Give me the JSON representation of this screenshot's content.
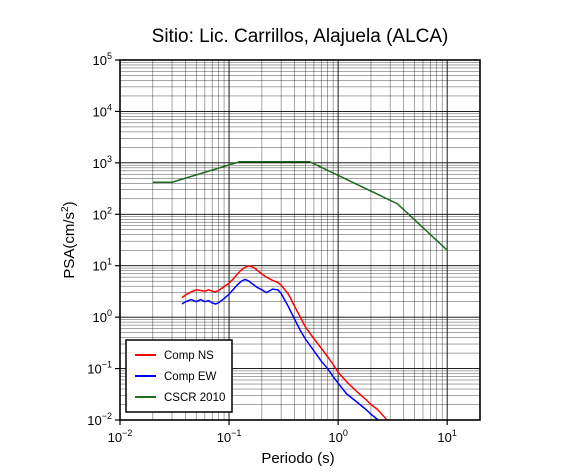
{
  "chart_data": {
    "type": "line",
    "title": "Sitio: Lic. Carrillos, Alajuela (ALCA)",
    "xlabel": "Periodo (s)",
    "ylabel_prefix": "PSA(cm/s",
    "ylabel_exp": "2",
    "ylabel_suffix": ")",
    "x_scale": "log",
    "y_scale": "log",
    "xlim": [
      0.01,
      20
    ],
    "ylim": [
      0.01,
      100000
    ],
    "grid": true,
    "legend_position": "bottom-left",
    "x_ticks": [
      {
        "value": 0.01,
        "base": "10",
        "exp": "−2"
      },
      {
        "value": 0.1,
        "base": "10",
        "exp": "−1"
      },
      {
        "value": 1,
        "base": "10",
        "exp": "0"
      },
      {
        "value": 10,
        "base": "10",
        "exp": "1"
      }
    ],
    "y_ticks": [
      {
        "value": 0.01,
        "base": "10",
        "exp": "−2"
      },
      {
        "value": 0.1,
        "base": "10",
        "exp": "−1"
      },
      {
        "value": 1,
        "base": "10",
        "exp": "0"
      },
      {
        "value": 10,
        "base": "10",
        "exp": "1"
      },
      {
        "value": 100,
        "base": "10",
        "exp": "2"
      },
      {
        "value": 1000,
        "base": "10",
        "exp": "3"
      },
      {
        "value": 10000,
        "base": "10",
        "exp": "4"
      },
      {
        "value": 100000,
        "base": "10",
        "exp": "5"
      }
    ],
    "series": [
      {
        "name": "Comp NS",
        "color": "#ff0000",
        "x": [
          0.037,
          0.04,
          0.045,
          0.05,
          0.055,
          0.06,
          0.065,
          0.07,
          0.075,
          0.08,
          0.09,
          0.1,
          0.11,
          0.12,
          0.13,
          0.14,
          0.15,
          0.16,
          0.17,
          0.18,
          0.2,
          0.22,
          0.25,
          0.28,
          0.3,
          0.35,
          0.4,
          0.45,
          0.5,
          0.6,
          0.7,
          0.8,
          0.9,
          1.0,
          1.2,
          1.5,
          1.8,
          2.0,
          2.3,
          2.6,
          3.0
        ],
        "y": [
          2.4,
          2.7,
          3.1,
          3.4,
          3.3,
          3.2,
          3.4,
          3.2,
          3.1,
          3.3,
          3.9,
          4.6,
          5.6,
          7.0,
          8.3,
          9.3,
          9.9,
          9.7,
          9.1,
          8.3,
          6.9,
          6.0,
          5.2,
          4.7,
          4.2,
          2.8,
          1.6,
          1.0,
          0.65,
          0.38,
          0.25,
          0.17,
          0.12,
          0.085,
          0.055,
          0.035,
          0.025,
          0.02,
          0.016,
          0.012,
          0.0085
        ]
      },
      {
        "name": "Comp EW",
        "color": "#0000ff",
        "x": [
          0.037,
          0.04,
          0.045,
          0.05,
          0.055,
          0.06,
          0.065,
          0.07,
          0.075,
          0.08,
          0.09,
          0.1,
          0.11,
          0.12,
          0.13,
          0.14,
          0.15,
          0.16,
          0.18,
          0.2,
          0.22,
          0.25,
          0.28,
          0.3,
          0.35,
          0.4,
          0.45,
          0.5,
          0.6,
          0.7,
          0.8,
          0.9,
          1.0,
          1.2,
          1.5,
          1.8,
          2.0,
          2.2,
          2.5
        ],
        "y": [
          1.8,
          2.0,
          2.2,
          2.0,
          2.2,
          2.0,
          2.1,
          1.9,
          1.8,
          1.9,
          2.3,
          2.8,
          3.5,
          4.3,
          5.0,
          5.4,
          5.1,
          4.6,
          3.8,
          3.4,
          3.0,
          3.5,
          3.4,
          2.9,
          1.6,
          0.9,
          0.55,
          0.38,
          0.22,
          0.14,
          0.1,
          0.07,
          0.052,
          0.032,
          0.022,
          0.016,
          0.013,
          0.011,
          0.009
        ]
      },
      {
        "name": "CSCR 2010",
        "color": "#1f6a1f",
        "x": [
          0.02,
          0.03,
          0.125,
          0.55,
          3.5,
          10
        ],
        "y": [
          420,
          420,
          1050,
          1050,
          160,
          20
        ]
      }
    ]
  }
}
